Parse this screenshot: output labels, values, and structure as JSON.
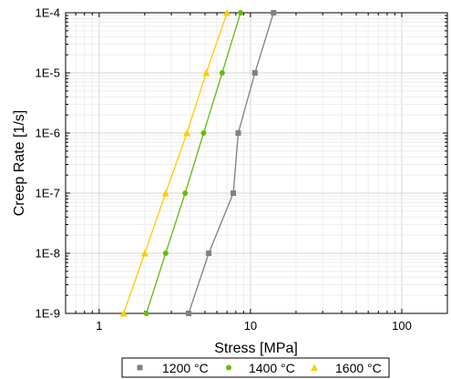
{
  "chart_data": {
    "type": "line",
    "title": "",
    "xlabel": "Stress [MPa]",
    "ylabel": "Creep Rate [1/s]",
    "x_scale": "log",
    "y_scale": "log",
    "xlim": [
      0.6,
      200
    ],
    "ylim": [
      1e-09,
      0.0001
    ],
    "x_ticks": [
      1,
      10,
      100
    ],
    "x_tick_labels": [
      "1",
      "10",
      "100"
    ],
    "y_ticks": [
      1e-09,
      1e-08,
      1e-07,
      1e-06,
      1e-05,
      0.0001
    ],
    "y_tick_labels": [
      "1E-9",
      "1E-8",
      "1E-7",
      "1E-6",
      "1E-5",
      "1E-4"
    ],
    "grid": true,
    "legend_position": "bottom",
    "series": [
      {
        "name": "1200 °C",
        "color": "#808080",
        "marker": "square",
        "points": [
          [
            3.9,
            1e-09
          ],
          [
            5.3,
            1e-08
          ],
          [
            7.7,
            1e-07
          ],
          [
            8.3,
            1e-06
          ],
          [
            10.7,
            1e-05
          ],
          [
            14.2,
            0.0001
          ]
        ]
      },
      {
        "name": "1400 °C",
        "color": "#66BB11",
        "marker": "circle",
        "points": [
          [
            2.05,
            1e-09
          ],
          [
            2.75,
            1e-08
          ],
          [
            3.7,
            1e-07
          ],
          [
            4.9,
            1e-06
          ],
          [
            6.5,
            1e-05
          ],
          [
            8.6,
            0.0001
          ]
        ]
      },
      {
        "name": "1600 °C",
        "color": "#FFCC00",
        "marker": "triangle",
        "points": [
          [
            1.45,
            1e-09
          ],
          [
            2.0,
            1e-08
          ],
          [
            2.75,
            1e-07
          ],
          [
            3.8,
            1e-06
          ],
          [
            5.1,
            1e-05
          ],
          [
            7.0,
            0.0001
          ]
        ]
      }
    ]
  }
}
